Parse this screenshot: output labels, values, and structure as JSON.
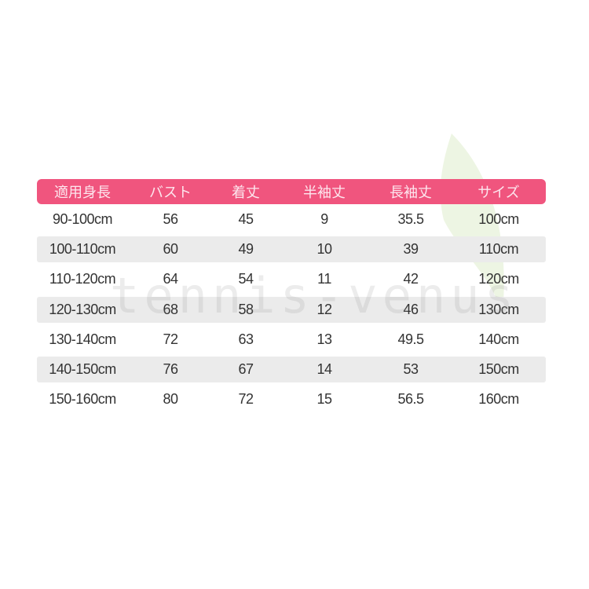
{
  "table": {
    "headers": [
      "適用身長",
      "バスト",
      "着丈",
      "半袖丈",
      "長袖丈",
      "サイズ"
    ],
    "rows": [
      [
        "90-100cm",
        "56",
        "45",
        "9",
        "35.5",
        "100cm"
      ],
      [
        "100-110cm",
        "60",
        "49",
        "10",
        "39",
        "110cm"
      ],
      [
        "110-120cm",
        "64",
        "54",
        "11",
        "42",
        "120cm"
      ],
      [
        "120-130cm",
        "68",
        "58",
        "12",
        "46",
        "130cm"
      ],
      [
        "130-140cm",
        "72",
        "63",
        "13",
        "49.5",
        "140cm"
      ],
      [
        "140-150cm",
        "76",
        "67",
        "14",
        "53",
        "150cm"
      ],
      [
        "150-160cm",
        "80",
        "72",
        "15",
        "56.5",
        "160cm"
      ]
    ]
  },
  "watermark": "tennis-venus",
  "colors": {
    "header_bg": "#f0557e",
    "alt_row": "#ebebeb",
    "leaf": "#e8f2d8"
  }
}
